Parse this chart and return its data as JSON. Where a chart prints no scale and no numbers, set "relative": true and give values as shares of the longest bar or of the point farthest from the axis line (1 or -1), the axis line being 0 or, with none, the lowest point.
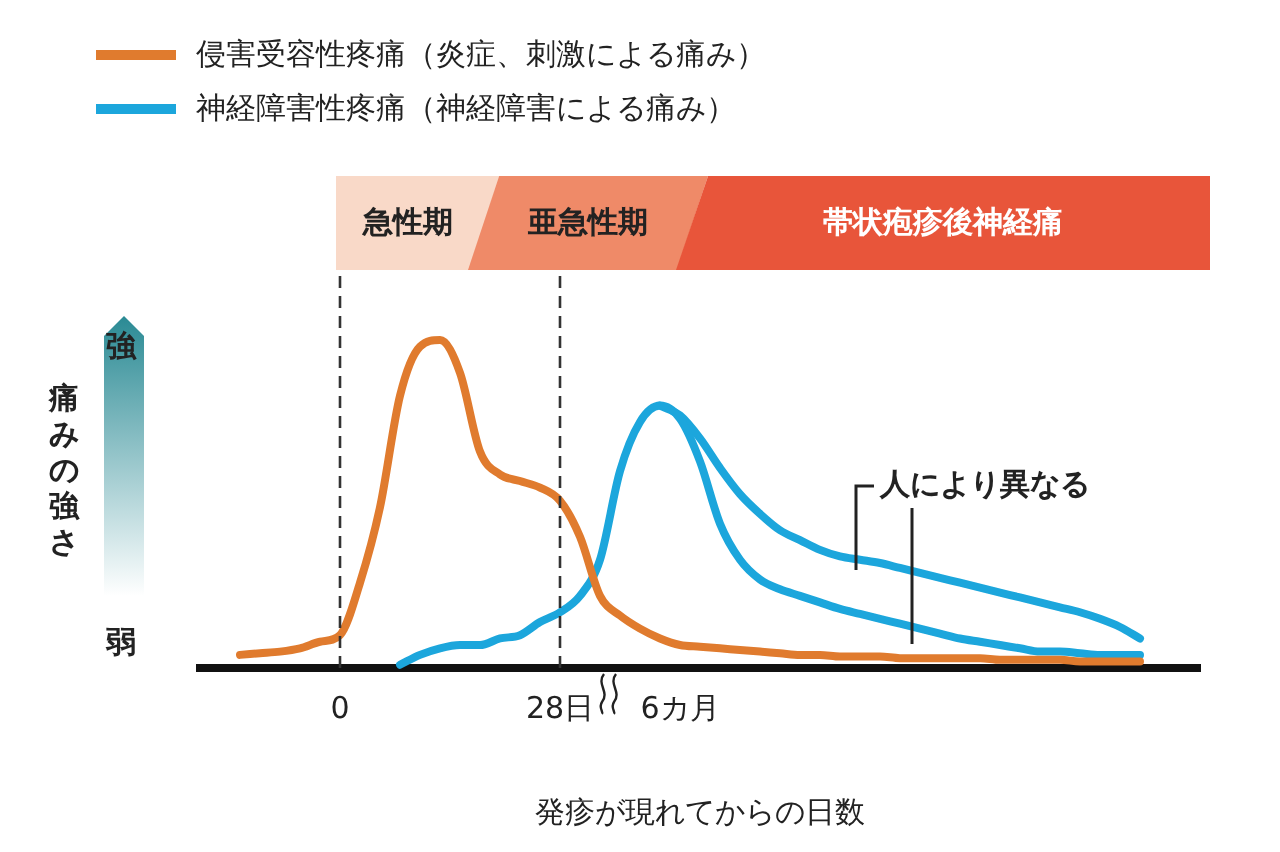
{
  "chart_data": {
    "type": "line",
    "relative": true,
    "xlabel": "発疹が現れてからの日数",
    "ylabel": "痛みの強さ",
    "legend": "top left",
    "marker": "none",
    "line_style": "solid",
    "categories": [
      null,
      null,
      null,
      null,
      null,
      null,
      null,
      "0",
      null,
      null,
      null,
      null,
      null,
      null,
      null,
      null,
      null,
      null,
      "28日",
      null,
      null,
      null,
      null,
      null,
      "6カ月",
      null,
      null,
      null,
      null,
      null,
      null,
      null,
      null,
      null,
      null,
      null,
      null,
      null,
      null,
      null,
      null,
      null,
      null,
      null,
      null,
      null,
      null,
      null,
      null,
      null,
      null
    ],
    "series": [
      {
        "name": "侵害受容性疼痛（炎症、刺激による痛み）",
        "color": "#e07b2e",
        "values": [
          null,
          null,
          0.04,
          0.045,
          0.05,
          0.06,
          0.08,
          0.1,
          0.26,
          0.49,
          0.83,
          0.98,
          1,
          0.9,
          0.66,
          0.59,
          0.57,
          0.55,
          0.51,
          0.4,
          0.22,
          0.16,
          0.12,
          0.09,
          0.07,
          0.065,
          0.06,
          0.055,
          0.05,
          0.045,
          0.04,
          0.04,
          0.035,
          0.035,
          0.035,
          0.03,
          0.03,
          0.03,
          0.03,
          0.03,
          0.025,
          0.025,
          0.025,
          0.025,
          0.02,
          0.02,
          0.02,
          0.02,
          null,
          null,
          null
        ]
      },
      {
        "name": "神経障害性疼痛（神経障害による痛み）",
        "color": "#1ca6dc",
        "values": [
          null,
          null,
          null,
          null,
          null,
          null,
          null,
          null,
          null,
          null,
          0.01,
          0.04,
          0.06,
          0.07,
          0.07,
          0.09,
          0.1,
          0.14,
          0.17,
          0.22,
          0.33,
          0.6,
          0.75,
          0.8,
          0.76,
          0.63,
          0.44,
          0.33,
          0.27,
          0.24,
          0.22,
          0.2,
          0.18,
          0.165,
          0.15,
          0.135,
          0.12,
          0.105,
          0.09,
          0.08,
          0.07,
          0.06,
          0.05,
          0.05,
          0.045,
          0.04,
          0.04,
          0.04,
          null,
          null,
          null
        ]
      },
      {
        "color": "#1ca6dc",
        "values": [
          null,
          null,
          null,
          null,
          null,
          null,
          null,
          null,
          null,
          null,
          null,
          null,
          null,
          null,
          null,
          null,
          null,
          null,
          null,
          null,
          null,
          null,
          null,
          0.8,
          0.77,
          0.7,
          0.61,
          0.53,
          0.47,
          0.42,
          0.39,
          0.36,
          0.34,
          0.33,
          0.32,
          0.305,
          0.29,
          0.275,
          0.26,
          0.245,
          0.23,
          0.215,
          0.2,
          0.185,
          0.17,
          0.15,
          0.125,
          0.09,
          null,
          null,
          null
        ]
      }
    ],
    "ref_lines": [
      {
        "axis": "x",
        "value": "0",
        "line_style": "dashed",
        "color": "#333333"
      },
      {
        "axis": "x",
        "value": "28日",
        "line_style": "dashed",
        "color": "#333333"
      }
    ],
    "annotations": [
      "急性期",
      "亜急性期",
      "帯状疱疹後神経痛",
      "強",
      "弱",
      "人により異なる"
    ]
  }
}
